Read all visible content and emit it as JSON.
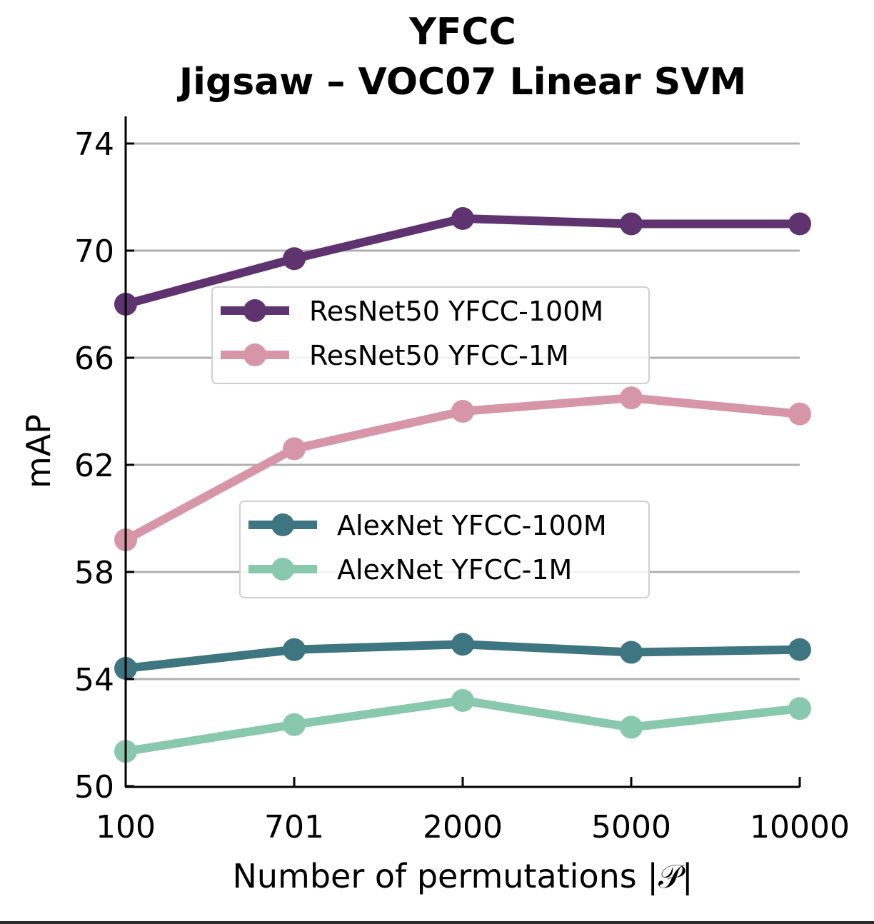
{
  "chart_data": {
    "type": "line",
    "title": [
      "YFCC",
      "Jigsaw  – VOC07 Linear SVM"
    ],
    "xlabel": "Number of permutations |𝒫|",
    "ylabel": "mAP",
    "categories": [
      "100",
      "701",
      "2000",
      "5000",
      "10000"
    ],
    "x_scale": "categorical",
    "ylim": [
      50,
      75
    ],
    "yticks": [
      50,
      54,
      58,
      62,
      66,
      70,
      74
    ],
    "grid": "horizontal",
    "series": [
      {
        "name": "ResNet50 YFCC-100M",
        "color": "#5f3370",
        "values": [
          68.0,
          69.7,
          71.2,
          71.0,
          71.0
        ],
        "legend_group": 0
      },
      {
        "name": "ResNet50 YFCC-1M",
        "color": "#d795a8",
        "values": [
          59.2,
          62.6,
          64.0,
          64.5,
          63.9
        ],
        "legend_group": 0
      },
      {
        "name": "AlexNet YFCC-100M",
        "color": "#3d7580",
        "values": [
          54.4,
          55.1,
          55.3,
          55.0,
          55.1
        ],
        "legend_group": 1
      },
      {
        "name": "AlexNet YFCC-1M",
        "color": "#88c8ad",
        "values": [
          51.3,
          52.3,
          53.2,
          52.2,
          52.9
        ],
        "legend_group": 1
      }
    ],
    "legends": [
      {
        "placement": "upper-center",
        "entries": [
          "ResNet50 YFCC-100M",
          "ResNet50 YFCC-1M"
        ]
      },
      {
        "placement": "center",
        "entries": [
          "AlexNet YFCC-100M",
          "AlexNet YFCC-1M"
        ]
      }
    ]
  }
}
